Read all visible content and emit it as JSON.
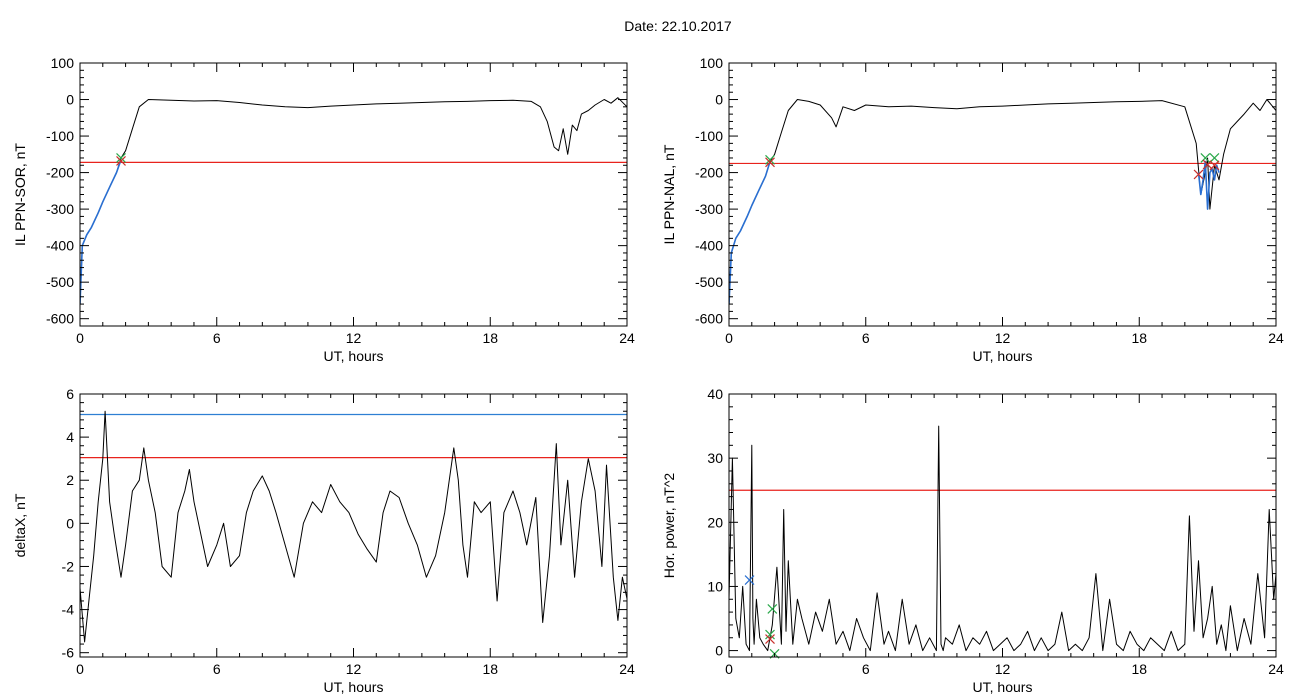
{
  "page": {
    "title": "Date:  22.10.2017"
  },
  "colors": {
    "frame": "#000000",
    "trace": "#000000",
    "red_threshold": "#e8231d",
    "blue_threshold": "#2e7fd3",
    "blue_trace": "#2a6fd1",
    "green_mark": "#2aa84a",
    "red_mark": "#c9302c"
  },
  "chart_data": [
    {
      "id": "p1",
      "type": "line",
      "xlabel": "UT, hours",
      "ylabel": "IL PPN-SOR, nT",
      "xlim": [
        0,
        24
      ],
      "ylim": [
        -620,
        100
      ],
      "xticks": [
        0,
        6,
        12,
        18,
        24
      ],
      "yticks": [
        -600,
        -500,
        -400,
        -300,
        -200,
        -100,
        0,
        100
      ],
      "thresholds": [
        {
          "y": -172,
          "color": "#e8231d"
        }
      ],
      "series": [
        {
          "color": "#000000",
          "x": [
            0,
            0.1,
            0.3,
            0.5,
            0.8,
            1.0,
            1.3,
            1.6,
            1.8,
            2.0,
            2.3,
            2.6,
            3.0,
            4,
            5,
            6,
            7,
            8,
            9,
            10,
            11,
            12,
            13,
            14,
            15,
            16,
            17,
            18,
            19,
            19.8,
            20.2,
            20.5,
            20.8,
            21.0,
            21.2,
            21.4,
            21.6,
            21.8,
            22.0,
            22.3,
            22.6,
            23.0,
            23.3,
            23.6,
            24
          ],
          "y": [
            -560,
            -400,
            -370,
            -350,
            -310,
            -280,
            -240,
            -200,
            -160,
            -140,
            -80,
            -20,
            0,
            -2,
            -4,
            -3,
            -8,
            -15,
            -20,
            -22,
            -18,
            -15,
            -12,
            -10,
            -8,
            -6,
            -5,
            -3,
            -2,
            -5,
            -20,
            -60,
            -130,
            -140,
            -80,
            -150,
            -70,
            -85,
            -40,
            -30,
            -15,
            0,
            -10,
            5,
            -20
          ]
        },
        {
          "color": "#2a6fd1",
          "x": [
            0,
            0.1,
            0.3,
            0.5,
            0.8,
            1.0,
            1.3,
            1.6,
            1.8
          ],
          "y": [
            -560,
            -400,
            -370,
            -350,
            -310,
            -280,
            -240,
            -200,
            -165
          ]
        }
      ],
      "markers": [
        {
          "x": 1.8,
          "y": -160,
          "color": "#2aa84a"
        },
        {
          "x": 1.8,
          "y": -168,
          "color": "#c9302c"
        }
      ]
    },
    {
      "id": "p2",
      "type": "line",
      "xlabel": "UT, hours",
      "ylabel": "IL PPN-NAL, nT",
      "xlim": [
        0,
        24
      ],
      "ylim": [
        -620,
        100
      ],
      "xticks": [
        0,
        6,
        12,
        18,
        24
      ],
      "yticks": [
        -600,
        -500,
        -400,
        -300,
        -200,
        -100,
        0,
        100
      ],
      "thresholds": [
        {
          "y": -175,
          "color": "#e8231d"
        }
      ],
      "series": [
        {
          "color": "#000000",
          "x": [
            0,
            0.1,
            0.3,
            0.5,
            0.8,
            1.0,
            1.3,
            1.6,
            1.8,
            2.0,
            2.3,
            2.6,
            3.0,
            3.5,
            4.0,
            4.5,
            4.7,
            5.0,
            5.5,
            6,
            7,
            8,
            9,
            10,
            11,
            12,
            13,
            14,
            15,
            16,
            17,
            18,
            19,
            20.0,
            20.5,
            20.7,
            20.9,
            21.0,
            21.1,
            21.3,
            21.5,
            21.7,
            22.0,
            22.3,
            22.6,
            23.0,
            23.3,
            23.6,
            24
          ],
          "y": [
            -560,
            -420,
            -380,
            -360,
            -320,
            -290,
            -250,
            -210,
            -170,
            -150,
            -90,
            -30,
            0,
            -5,
            -15,
            -50,
            -75,
            -20,
            -30,
            -15,
            -20,
            -18,
            -22,
            -25,
            -20,
            -18,
            -15,
            -12,
            -10,
            -8,
            -6,
            -5,
            -3,
            -20,
            -120,
            -260,
            -200,
            -160,
            -300,
            -180,
            -220,
            -150,
            -80,
            -60,
            -40,
            -10,
            -30,
            0,
            -30
          ]
        },
        {
          "color": "#2a6fd1",
          "x": [
            0,
            0.1,
            0.3,
            0.5,
            0.8,
            1.0,
            1.3,
            1.6,
            1.8
          ],
          "y": [
            -560,
            -420,
            -380,
            -360,
            -320,
            -290,
            -250,
            -210,
            -170
          ]
        },
        {
          "color": "#2a6fd1",
          "x": [
            20.6,
            20.7,
            20.8,
            20.9,
            21.0,
            21.1,
            21.2,
            21.3,
            21.4,
            21.5
          ],
          "y": [
            -200,
            -260,
            -220,
            -170,
            -300,
            -200,
            -190,
            -220,
            -180,
            -200
          ]
        }
      ],
      "markers": [
        {
          "x": 1.8,
          "y": -165,
          "color": "#2aa84a"
        },
        {
          "x": 1.8,
          "y": -172,
          "color": "#c9302c"
        },
        {
          "x": 20.6,
          "y": -205,
          "color": "#c9302c"
        },
        {
          "x": 20.9,
          "y": -160,
          "color": "#2aa84a"
        },
        {
          "x": 21.0,
          "y": -178,
          "color": "#c9302c"
        },
        {
          "x": 21.3,
          "y": -160,
          "color": "#2aa84a"
        },
        {
          "x": 21.3,
          "y": -180,
          "color": "#c9302c"
        }
      ]
    },
    {
      "id": "p3",
      "type": "line",
      "xlabel": "UT, hours",
      "ylabel": "deltaX, nT",
      "xlim": [
        0,
        24
      ],
      "ylim": [
        -6.2,
        6
      ],
      "xticks": [
        0,
        6,
        12,
        18,
        24
      ],
      "yticks": [
        -6,
        -4,
        -2,
        0,
        2,
        4,
        6
      ],
      "thresholds": [
        {
          "y": 5.05,
          "color": "#2e7fd3"
        },
        {
          "y": 3.05,
          "color": "#e8231d"
        }
      ],
      "series": [
        {
          "color": "#000000",
          "x": [
            0,
            0.2,
            0.4,
            0.6,
            0.8,
            1.0,
            1.1,
            1.3,
            1.5,
            1.8,
            2.0,
            2.3,
            2.6,
            2.8,
            3.0,
            3.3,
            3.6,
            4.0,
            4.3,
            4.6,
            4.8,
            5.0,
            5.3,
            5.6,
            6.0,
            6.3,
            6.6,
            7.0,
            7.3,
            7.6,
            8.0,
            8.3,
            8.6,
            9.0,
            9.4,
            9.8,
            10.2,
            10.6,
            11.0,
            11.4,
            11.8,
            12.2,
            12.6,
            13.0,
            13.3,
            13.6,
            14.0,
            14.4,
            14.8,
            15.2,
            15.6,
            16.0,
            16.4,
            16.6,
            16.8,
            17.0,
            17.3,
            17.6,
            18.0,
            18.3,
            18.6,
            19.0,
            19.3,
            19.6,
            20.0,
            20.3,
            20.6,
            20.9,
            21.1,
            21.4,
            21.7,
            22.0,
            22.3,
            22.6,
            22.9,
            23.1,
            23.4,
            23.6,
            23.8,
            24.0
          ],
          "y": [
            -3.0,
            -5.5,
            -3.5,
            -1.5,
            1.0,
            3.0,
            5.2,
            1.0,
            -0.5,
            -2.5,
            -1.0,
            1.5,
            2.0,
            3.5,
            2.0,
            0.5,
            -2.0,
            -2.5,
            0.5,
            1.5,
            2.5,
            1.0,
            -0.5,
            -2.0,
            -1.0,
            0.0,
            -2.0,
            -1.5,
            0.5,
            1.5,
            2.2,
            1.5,
            0.5,
            -1.0,
            -2.5,
            0.0,
            1.0,
            0.5,
            1.8,
            1.0,
            0.5,
            -0.5,
            -1.2,
            -1.8,
            0.5,
            1.5,
            1.2,
            0.0,
            -1.0,
            -2.5,
            -1.5,
            0.5,
            3.5,
            2.0,
            -1.0,
            -2.5,
            1.0,
            0.5,
            1.0,
            -3.6,
            0.5,
            1.5,
            0.5,
            -1.0,
            1.2,
            -4.6,
            -1.5,
            3.7,
            -1.0,
            2.0,
            -2.5,
            1.0,
            3.0,
            1.5,
            -2.0,
            2.7,
            -2.5,
            -4.5,
            -2.5,
            -3.5
          ]
        }
      ],
      "markers": []
    },
    {
      "id": "p4",
      "type": "line",
      "xlabel": "UT, hours",
      "ylabel": "Hor. power, nT^2",
      "xlim": [
        0,
        24
      ],
      "ylim": [
        -1,
        40
      ],
      "xticks": [
        0,
        6,
        12,
        18,
        24
      ],
      "yticks": [
        0,
        10,
        20,
        30,
        40
      ],
      "thresholds": [
        {
          "y": 25,
          "color": "#e8231d"
        }
      ],
      "series": [
        {
          "color": "#000000",
          "x": [
            0,
            0.15,
            0.3,
            0.45,
            0.6,
            0.75,
            0.9,
            1.0,
            1.05,
            1.1,
            1.2,
            1.35,
            1.5,
            1.7,
            1.9,
            2.1,
            2.3,
            2.4,
            2.5,
            2.6,
            2.8,
            3.0,
            3.2,
            3.5,
            3.8,
            4.1,
            4.4,
            4.7,
            5.0,
            5.3,
            5.6,
            5.9,
            6.2,
            6.5,
            6.8,
            7.0,
            7.3,
            7.6,
            7.9,
            8.2,
            8.5,
            8.8,
            9.1,
            9.2,
            9.3,
            9.4,
            9.5,
            9.8,
            10.1,
            10.4,
            10.7,
            11.0,
            11.3,
            11.6,
            11.9,
            12.2,
            12.5,
            12.8,
            13.1,
            13.4,
            13.7,
            14.0,
            14.3,
            14.6,
            14.9,
            15.2,
            15.5,
            15.8,
            16.1,
            16.4,
            16.7,
            17.0,
            17.3,
            17.6,
            17.9,
            18.2,
            18.5,
            18.8,
            19.1,
            19.4,
            19.7,
            20.0,
            20.2,
            20.4,
            20.6,
            20.8,
            21.0,
            21.2,
            21.4,
            21.6,
            21.8,
            22.0,
            22.3,
            22.6,
            22.9,
            23.2,
            23.5,
            23.7,
            23.9,
            24.0
          ],
          "y": [
            8,
            30,
            5,
            2,
            10,
            1,
            0,
            32,
            5,
            1,
            8,
            2,
            1,
            0,
            4,
            13,
            1,
            22,
            3,
            14,
            1,
            8,
            5,
            1,
            6,
            3,
            8,
            1,
            3,
            0,
            5,
            2,
            0,
            9,
            1,
            3,
            0,
            8,
            1,
            4,
            0,
            2,
            0,
            35,
            1,
            0,
            2,
            1,
            4,
            0,
            2,
            1,
            3,
            0,
            1,
            2,
            0,
            1,
            3,
            0,
            2,
            0,
            1,
            6,
            0,
            1,
            0,
            2,
            12,
            0,
            8,
            1,
            0,
            3,
            1,
            0,
            2,
            1,
            0,
            3,
            0,
            1,
            21,
            3,
            14,
            2,
            5,
            10,
            1,
            4,
            0,
            7,
            0,
            5,
            1,
            12,
            2,
            22,
            8,
            12
          ]
        }
      ],
      "markers": [
        {
          "x": 0.9,
          "y": 11,
          "color": "#2a6fd1"
        },
        {
          "x": 1.9,
          "y": 6.5,
          "color": "#2aa84a"
        },
        {
          "x": 1.8,
          "y": 2.5,
          "color": "#2aa84a"
        },
        {
          "x": 1.8,
          "y": 1.8,
          "color": "#c9302c"
        },
        {
          "x": 2.0,
          "y": -0.5,
          "color": "#2aa84a"
        }
      ]
    }
  ]
}
